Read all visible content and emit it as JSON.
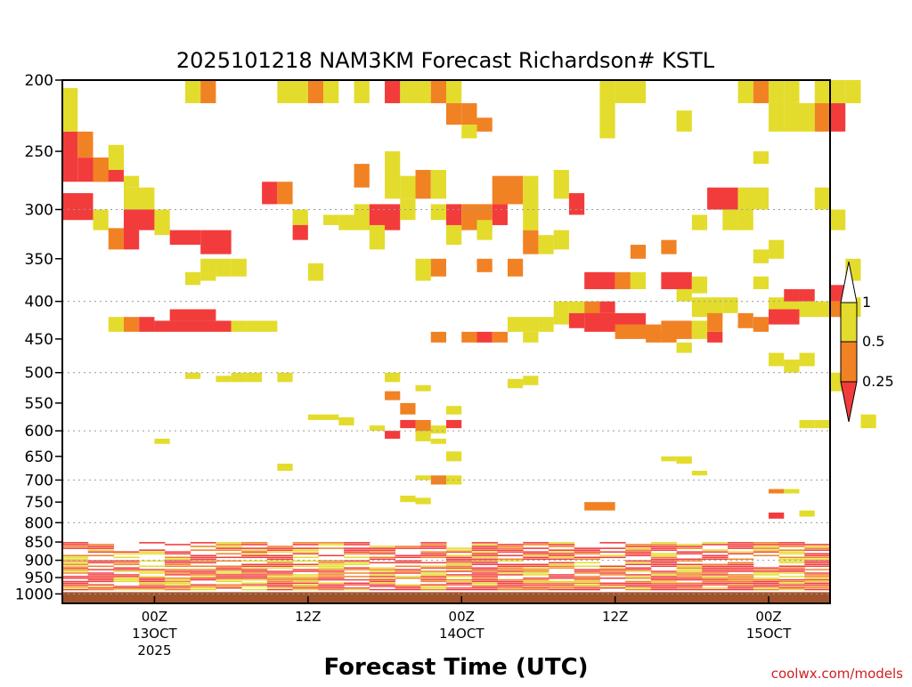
{
  "chart_data": {
    "type": "heatmap",
    "title": "2025101218 NAM3KM Forecast Richardson# KSTL",
    "xlabel": "Forecast Time (UTC)",
    "ylabel": "",
    "credit": "coolwx.com/models",
    "y_axis": {
      "unit_implied": "pressure (mb)",
      "ticks": [
        200,
        250,
        300,
        350,
        400,
        450,
        500,
        550,
        600,
        650,
        700,
        750,
        800,
        850,
        900,
        950,
        1000
      ],
      "range": [
        200,
        1000
      ],
      "inverted": true,
      "grid_lines": [
        300,
        400,
        500,
        600,
        700,
        800,
        900,
        1000
      ],
      "grid": "dotted"
    },
    "x_axis": {
      "range_hours": [
        -6,
        44
      ],
      "ticks": [
        {
          "hour": 0,
          "lines": [
            "00Z",
            "13OCT",
            "2025"
          ]
        },
        {
          "hour": 10,
          "lines": [
            "12Z"
          ]
        },
        {
          "hour": 20,
          "lines": [
            "00Z",
            "14OCT"
          ]
        },
        {
          "hour": 30,
          "lines": [
            "12Z"
          ]
        },
        {
          "hour": 40,
          "lines": [
            "00Z",
            "15OCT"
          ]
        }
      ]
    },
    "legend": {
      "placement": "right",
      "labels": [
        "1",
        "0.5",
        "0.25"
      ],
      "bins": [
        {
          "range": "> 1",
          "color": "#ffffff"
        },
        {
          "range": "0.5 - 1",
          "color": "#e3dc2c"
        },
        {
          "range": "0.25 - 0.5",
          "color": "#f08224"
        },
        {
          "range": "< 0.25",
          "color": "#f23c3c"
        }
      ]
    },
    "ground_color": "#a0522d",
    "colors": {
      "yellow": "#e3dc2c",
      "orange": "#f08224",
      "red": "#f23c3c"
    },
    "cells_note": "cells: [start_hour, end_hour, top_pressure_mb, bottom_pressure_mb, category]",
    "cells": [
      [
        -6,
        -5,
        235,
        275,
        "red"
      ],
      [
        -5,
        -4,
        235,
        255,
        "orange"
      ],
      [
        -5,
        -2,
        255,
        275,
        "red"
      ],
      [
        -4,
        -3,
        255,
        275,
        "orange"
      ],
      [
        -3,
        -2,
        245,
        265,
        "yellow"
      ],
      [
        -6,
        -5,
        205,
        235,
        "yellow"
      ],
      [
        -2,
        -1,
        270,
        280,
        "yellow"
      ],
      [
        -6,
        -4,
        285,
        310,
        "red"
      ],
      [
        -4,
        -3,
        300,
        320,
        "yellow"
      ],
      [
        -3,
        -2,
        318,
        340,
        "orange"
      ],
      [
        -2,
        -1,
        318,
        340,
        "red"
      ],
      [
        -2,
        0,
        280,
        300,
        "yellow"
      ],
      [
        -2,
        0,
        300,
        320,
        "red"
      ],
      [
        0,
        1,
        300,
        320,
        "yellow"
      ],
      [
        1,
        3,
        320,
        335,
        "red"
      ],
      [
        3,
        5,
        320,
        345,
        "red"
      ],
      [
        0,
        1,
        315,
        325,
        "yellow"
      ],
      [
        2,
        3,
        365,
        380,
        "yellow"
      ],
      [
        3,
        4,
        350,
        375,
        "yellow"
      ],
      [
        4,
        5,
        350,
        370,
        "yellow"
      ],
      [
        5,
        6,
        350,
        370,
        "yellow"
      ],
      [
        2,
        3,
        200,
        215,
        "yellow"
      ],
      [
        3,
        4,
        200,
        215,
        "orange"
      ],
      [
        -3,
        -2,
        420,
        440,
        "yellow"
      ],
      [
        -2,
        -1,
        420,
        440,
        "orange"
      ],
      [
        -1,
        0,
        420,
        440,
        "red"
      ],
      [
        0,
        5,
        425,
        440,
        "red"
      ],
      [
        5,
        6,
        425,
        440,
        "yellow"
      ],
      [
        6,
        8,
        425,
        440,
        "yellow"
      ],
      [
        1,
        4,
        410,
        425,
        "red"
      ],
      [
        2,
        3,
        500,
        510,
        "yellow"
      ],
      [
        4,
        5,
        505,
        515,
        "yellow"
      ],
      [
        5,
        6,
        500,
        515,
        "yellow"
      ],
      [
        6,
        7,
        500,
        515,
        "yellow"
      ],
      [
        8,
        9,
        500,
        515,
        "yellow"
      ],
      [
        0,
        1,
        615,
        625,
        "yellow"
      ],
      [
        8,
        9,
        665,
        680,
        "yellow"
      ],
      [
        7,
        8,
        275,
        295,
        "red"
      ],
      [
        8,
        9,
        275,
        295,
        "orange"
      ],
      [
        9,
        10,
        310,
        330,
        "red"
      ],
      [
        9,
        10,
        300,
        315,
        "yellow"
      ],
      [
        10,
        11,
        355,
        375,
        "yellow"
      ],
      [
        11,
        12,
        305,
        315,
        "yellow"
      ],
      [
        12,
        13,
        305,
        320,
        "yellow"
      ],
      [
        13,
        14,
        260,
        280,
        "orange"
      ],
      [
        13,
        14,
        295,
        320,
        "yellow"
      ],
      [
        8,
        10,
        200,
        215,
        "yellow"
      ],
      [
        10,
        11,
        200,
        215,
        "orange"
      ],
      [
        11,
        12,
        200,
        215,
        "yellow"
      ],
      [
        13,
        14,
        200,
        215,
        "yellow"
      ],
      [
        15,
        16,
        200,
        215,
        "red"
      ],
      [
        16,
        18,
        200,
        215,
        "yellow"
      ],
      [
        18,
        19,
        200,
        215,
        "orange"
      ],
      [
        19,
        20,
        200,
        215,
        "yellow"
      ],
      [
        15,
        16,
        250,
        290,
        "yellow"
      ],
      [
        14,
        16,
        295,
        320,
        "red"
      ],
      [
        14,
        15,
        315,
        340,
        "yellow"
      ],
      [
        16,
        17,
        270,
        290,
        "yellow"
      ],
      [
        17,
        18,
        265,
        290,
        "orange"
      ],
      [
        18,
        19,
        265,
        290,
        "yellow"
      ],
      [
        16,
        17,
        290,
        310,
        "yellow"
      ],
      [
        18,
        19,
        295,
        310,
        "yellow"
      ],
      [
        19,
        20,
        295,
        320,
        "red"
      ],
      [
        20,
        22,
        295,
        320,
        "orange"
      ],
      [
        22,
        23,
        295,
        315,
        "red"
      ],
      [
        19,
        20,
        315,
        335,
        "yellow"
      ],
      [
        21,
        22,
        310,
        330,
        "yellow"
      ],
      [
        19,
        20,
        215,
        230,
        "orange"
      ],
      [
        20,
        21,
        215,
        230,
        "orange"
      ],
      [
        21,
        22,
        225,
        235,
        "orange"
      ],
      [
        20,
        21,
        230,
        240,
        "yellow"
      ],
      [
        17,
        18,
        350,
        375,
        "yellow"
      ],
      [
        18,
        19,
        350,
        370,
        "orange"
      ],
      [
        21,
        22,
        350,
        365,
        "orange"
      ],
      [
        23,
        24,
        350,
        370,
        "orange"
      ],
      [
        24,
        25,
        320,
        345,
        "orange"
      ],
      [
        25,
        26,
        325,
        345,
        "yellow"
      ],
      [
        26,
        27,
        320,
        340,
        "yellow"
      ],
      [
        24,
        25,
        290,
        320,
        "yellow"
      ],
      [
        22,
        24,
        270,
        295,
        "orange"
      ],
      [
        24,
        25,
        270,
        295,
        "yellow"
      ],
      [
        26,
        27,
        265,
        290,
        "yellow"
      ],
      [
        27,
        28,
        285,
        305,
        "red"
      ],
      [
        18,
        19,
        440,
        455,
        "orange"
      ],
      [
        20,
        21,
        440,
        455,
        "orange"
      ],
      [
        21,
        22,
        440,
        455,
        "red"
      ],
      [
        22,
        23,
        440,
        455,
        "orange"
      ],
      [
        23,
        25,
        420,
        440,
        "yellow"
      ],
      [
        24,
        25,
        440,
        455,
        "yellow"
      ],
      [
        25,
        26,
        420,
        440,
        "yellow"
      ],
      [
        26,
        27,
        400,
        430,
        "yellow"
      ],
      [
        27,
        28,
        400,
        415,
        "yellow"
      ],
      [
        28,
        29,
        400,
        420,
        "orange"
      ],
      [
        27,
        28,
        415,
        435,
        "red"
      ],
      [
        28,
        32,
        415,
        440,
        "red"
      ],
      [
        29,
        30,
        400,
        415,
        "red"
      ],
      [
        28,
        30,
        365,
        385,
        "red"
      ],
      [
        30,
        31,
        365,
        385,
        "orange"
      ],
      [
        31,
        32,
        365,
        385,
        "yellow"
      ],
      [
        30,
        33,
        430,
        450,
        "orange"
      ],
      [
        32,
        33,
        440,
        455,
        "orange"
      ],
      [
        33,
        34,
        440,
        455,
        "orange"
      ],
      [
        29,
        30,
        200,
        240,
        "yellow"
      ],
      [
        30,
        32,
        200,
        215,
        "yellow"
      ],
      [
        34,
        35,
        220,
        235,
        "yellow"
      ],
      [
        31,
        32,
        335,
        350,
        "orange"
      ],
      [
        33,
        34,
        330,
        345,
        "orange"
      ],
      [
        33,
        35,
        365,
        385,
        "red"
      ],
      [
        35,
        36,
        370,
        390,
        "yellow"
      ],
      [
        34,
        35,
        385,
        400,
        "yellow"
      ],
      [
        35,
        37,
        395,
        420,
        "yellow"
      ],
      [
        33,
        35,
        425,
        450,
        "orange"
      ],
      [
        35,
        36,
        425,
        450,
        "yellow"
      ],
      [
        36,
        37,
        440,
        455,
        "red"
      ],
      [
        34,
        35,
        455,
        470,
        "yellow"
      ],
      [
        36,
        37,
        415,
        440,
        "orange"
      ],
      [
        37,
        38,
        395,
        415,
        "yellow"
      ],
      [
        38,
        39,
        415,
        435,
        "orange"
      ],
      [
        39,
        40,
        420,
        440,
        "orange"
      ],
      [
        40,
        42,
        395,
        420,
        "yellow"
      ],
      [
        41,
        42,
        385,
        400,
        "red"
      ],
      [
        42,
        43,
        385,
        400,
        "red"
      ],
      [
        39,
        40,
        370,
        385,
        "yellow"
      ],
      [
        40,
        42,
        410,
        430,
        "red"
      ],
      [
        42,
        44,
        400,
        420,
        "yellow"
      ],
      [
        36,
        38,
        280,
        300,
        "red"
      ],
      [
        38,
        40,
        280,
        300,
        "yellow"
      ],
      [
        37,
        38,
        300,
        320,
        "yellow"
      ],
      [
        38,
        39,
        300,
        320,
        "yellow"
      ],
      [
        39,
        40,
        250,
        260,
        "yellow"
      ],
      [
        39,
        40,
        340,
        355,
        "yellow"
      ],
      [
        40,
        41,
        330,
        350,
        "yellow"
      ],
      [
        35,
        36,
        305,
        320,
        "yellow"
      ],
      [
        38,
        39,
        200,
        215,
        "yellow"
      ],
      [
        39,
        40,
        200,
        215,
        "orange"
      ],
      [
        40,
        41,
        200,
        215,
        "yellow"
      ],
      [
        41,
        42,
        200,
        215,
        "yellow"
      ],
      [
        42,
        43,
        215,
        235,
        "yellow"
      ],
      [
        43,
        44,
        200,
        215,
        "yellow"
      ],
      [
        43,
        44,
        215,
        235,
        "orange"
      ],
      [
        44,
        45,
        215,
        235,
        "red"
      ],
      [
        44,
        45,
        200,
        215,
        "yellow"
      ],
      [
        45,
        46,
        200,
        215,
        "yellow"
      ],
      [
        40,
        41,
        215,
        235,
        "yellow"
      ],
      [
        41,
        42,
        215,
        235,
        "yellow"
      ],
      [
        43,
        44,
        280,
        300,
        "yellow"
      ],
      [
        44,
        45,
        300,
        320,
        "yellow"
      ],
      [
        45,
        46,
        350,
        375,
        "yellow"
      ],
      [
        44,
        45,
        380,
        400,
        "red"
      ],
      [
        44,
        45,
        400,
        420,
        "orange"
      ],
      [
        45,
        46,
        395,
        420,
        "yellow"
      ],
      [
        40,
        41,
        470,
        490,
        "yellow"
      ],
      [
        41,
        42,
        480,
        500,
        "yellow"
      ],
      [
        42,
        43,
        470,
        490,
        "yellow"
      ],
      [
        44,
        45,
        500,
        530,
        "yellow"
      ],
      [
        42,
        43,
        580,
        595,
        "yellow"
      ],
      [
        43,
        44,
        580,
        595,
        "yellow"
      ],
      [
        46,
        47,
        570,
        595,
        "yellow"
      ],
      [
        40,
        41,
        720,
        730,
        "orange"
      ],
      [
        41,
        42,
        720,
        730,
        "yellow"
      ],
      [
        40,
        41,
        775,
        790,
        "red"
      ],
      [
        42,
        43,
        770,
        785,
        "yellow"
      ],
      [
        28,
        30,
        750,
        770,
        "orange"
      ],
      [
        33,
        34,
        650,
        660,
        "yellow"
      ],
      [
        34,
        35,
        650,
        665,
        "yellow"
      ],
      [
        35,
        36,
        680,
        690,
        "yellow"
      ],
      [
        23,
        24,
        510,
        525,
        "yellow"
      ],
      [
        24,
        25,
        505,
        520,
        "yellow"
      ],
      [
        17,
        18,
        520,
        530,
        "yellow"
      ],
      [
        15,
        16,
        500,
        515,
        "yellow"
      ],
      [
        16,
        17,
        550,
        570,
        "orange"
      ],
      [
        16,
        17,
        580,
        595,
        "red"
      ],
      [
        17,
        18,
        580,
        610,
        "orange"
      ],
      [
        18,
        19,
        590,
        605,
        "yellow"
      ],
      [
        19,
        20,
        580,
        595,
        "red"
      ],
      [
        19,
        20,
        555,
        570,
        "yellow"
      ],
      [
        15,
        16,
        530,
        545,
        "orange"
      ],
      [
        10,
        12,
        570,
        580,
        "yellow"
      ],
      [
        12,
        13,
        575,
        590,
        "yellow"
      ],
      [
        14,
        15,
        590,
        600,
        "yellow"
      ],
      [
        15,
        16,
        600,
        615,
        "red"
      ],
      [
        17,
        18,
        600,
        620,
        "yellow"
      ],
      [
        18,
        19,
        615,
        625,
        "yellow"
      ],
      [
        19,
        20,
        640,
        660,
        "yellow"
      ],
      [
        17,
        18,
        690,
        700,
        "yellow"
      ],
      [
        18,
        19,
        690,
        710,
        "orange"
      ],
      [
        19,
        20,
        690,
        710,
        "yellow"
      ],
      [
        17,
        18,
        740,
        755,
        "yellow"
      ],
      [
        16,
        17,
        735,
        750,
        "yellow"
      ]
    ],
    "low_level_bands_note": "dense alternating stripes between 850 and 1000 mb",
    "low_level_range": [
      850,
      990
    ]
  }
}
